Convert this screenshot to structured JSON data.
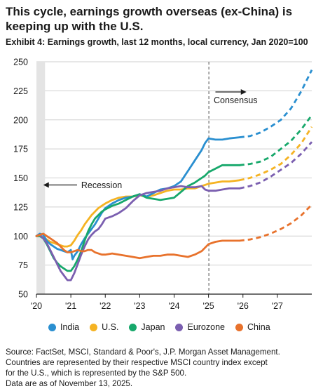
{
  "header": {
    "title": "This cycle, earnings growth overseas (ex-China) is keeping up with the U.S.",
    "subtitle": "Exhibit 4: Earnings growth, last 12 months, local currency, Jan 2020=100"
  },
  "source": {
    "lines": [
      "Source: FactSet, MSCI, Standard & Poor's, J.P. Morgan Asset Management.",
      "Countries are represented by their respective MSCI country index except",
      "for the U.S., which is represented by the S&P 500.",
      "Data are as of November 13, 2025."
    ]
  },
  "chart_data": {
    "type": "line",
    "title": "This cycle, earnings growth overseas (ex-China) is keeping up with the U.S.",
    "subtitle": "Exhibit 4: Earnings growth, last 12 months, local currency, Jan 2020=100",
    "xlabel": "",
    "ylabel": "",
    "xlim": [
      2020.0,
      2028.0
    ],
    "ylim": [
      50,
      250
    ],
    "xticks": [
      2020,
      2021,
      2022,
      2023,
      2024,
      2025,
      2026,
      2027
    ],
    "xtick_labels": [
      "'20",
      "'21",
      "'22",
      "'23",
      "'24",
      "'25",
      "'26",
      "'27"
    ],
    "yticks": [
      50,
      75,
      100,
      125,
      150,
      175,
      200,
      225,
      250
    ],
    "grid": "horizontal",
    "legend_position": "bottom",
    "recession": {
      "start": 2020.0,
      "end": 2020.25,
      "label": "Recession"
    },
    "forecast_start": 2025.0,
    "forecast_label": "Consensus",
    "series": [
      {
        "name": "India",
        "color": "#2a8fd0",
        "actual": [
          [
            2020.0,
            100
          ],
          [
            2020.1,
            102
          ],
          [
            2020.2,
            101
          ],
          [
            2020.3,
            96
          ],
          [
            2020.4,
            93
          ],
          [
            2020.5,
            91
          ],
          [
            2020.6,
            89
          ],
          [
            2020.7,
            88
          ],
          [
            2020.8,
            87
          ],
          [
            2020.9,
            86
          ],
          [
            2021.0,
            88
          ],
          [
            2021.05,
            80
          ],
          [
            2021.1,
            83
          ],
          [
            2021.2,
            87
          ],
          [
            2021.3,
            93
          ],
          [
            2021.4,
            98
          ],
          [
            2021.5,
            102
          ],
          [
            2021.6,
            106
          ],
          [
            2021.7,
            110
          ],
          [
            2021.8,
            115
          ],
          [
            2021.9,
            120
          ],
          [
            2022.0,
            124
          ],
          [
            2022.2,
            128
          ],
          [
            2022.4,
            131
          ],
          [
            2022.6,
            133
          ],
          [
            2022.8,
            134
          ],
          [
            2023.0,
            136
          ],
          [
            2023.2,
            134
          ],
          [
            2023.4,
            137
          ],
          [
            2023.6,
            140
          ],
          [
            2023.8,
            141
          ],
          [
            2024.0,
            143
          ],
          [
            2024.2,
            147
          ],
          [
            2024.4,
            156
          ],
          [
            2024.6,
            165
          ],
          [
            2024.8,
            174
          ],
          [
            2024.9,
            180
          ],
          [
            2025.0,
            184
          ],
          [
            2025.2,
            183
          ],
          [
            2025.4,
            183
          ],
          [
            2025.6,
            184
          ],
          [
            2025.9,
            185
          ]
        ],
        "forecast": [
          [
            2025.9,
            185
          ],
          [
            2026.2,
            186
          ],
          [
            2026.5,
            189
          ],
          [
            2026.8,
            194
          ],
          [
            2027.1,
            200
          ],
          [
            2027.4,
            210
          ],
          [
            2027.7,
            225
          ],
          [
            2028.0,
            243
          ]
        ]
      },
      {
        "name": "U.S.",
        "color": "#f5b323",
        "actual": [
          [
            2020.0,
            100
          ],
          [
            2020.1,
            100
          ],
          [
            2020.2,
            99
          ],
          [
            2020.3,
            97
          ],
          [
            2020.4,
            95
          ],
          [
            2020.5,
            94
          ],
          [
            2020.6,
            93
          ],
          [
            2020.7,
            92
          ],
          [
            2020.8,
            91
          ],
          [
            2020.9,
            91
          ],
          [
            2021.0,
            92
          ],
          [
            2021.1,
            96
          ],
          [
            2021.2,
            101
          ],
          [
            2021.3,
            105
          ],
          [
            2021.4,
            110
          ],
          [
            2021.5,
            114
          ],
          [
            2021.6,
            118
          ],
          [
            2021.7,
            121
          ],
          [
            2021.8,
            124
          ],
          [
            2021.9,
            126
          ],
          [
            2022.0,
            128
          ],
          [
            2022.2,
            131
          ],
          [
            2022.4,
            133
          ],
          [
            2022.6,
            134
          ],
          [
            2022.8,
            134
          ],
          [
            2023.0,
            135
          ],
          [
            2023.2,
            134
          ],
          [
            2023.4,
            135
          ],
          [
            2023.6,
            137
          ],
          [
            2023.8,
            139
          ],
          [
            2024.0,
            140
          ],
          [
            2024.2,
            140
          ],
          [
            2024.4,
            141
          ],
          [
            2024.6,
            141
          ],
          [
            2024.8,
            143
          ],
          [
            2024.9,
            144
          ],
          [
            2025.0,
            145
          ],
          [
            2025.2,
            146
          ],
          [
            2025.4,
            147
          ],
          [
            2025.6,
            147
          ],
          [
            2025.9,
            148
          ]
        ],
        "forecast": [
          [
            2025.9,
            148
          ],
          [
            2026.2,
            150
          ],
          [
            2026.5,
            153
          ],
          [
            2026.8,
            157
          ],
          [
            2027.1,
            162
          ],
          [
            2027.4,
            170
          ],
          [
            2027.7,
            180
          ],
          [
            2028.0,
            194
          ]
        ]
      },
      {
        "name": "Japan",
        "color": "#17a86b",
        "actual": [
          [
            2020.0,
            100
          ],
          [
            2020.1,
            100
          ],
          [
            2020.2,
            98
          ],
          [
            2020.3,
            93
          ],
          [
            2020.4,
            87
          ],
          [
            2020.5,
            81
          ],
          [
            2020.6,
            77
          ],
          [
            2020.7,
            74
          ],
          [
            2020.8,
            72
          ],
          [
            2020.9,
            70
          ],
          [
            2021.0,
            70
          ],
          [
            2021.1,
            74
          ],
          [
            2021.2,
            80
          ],
          [
            2021.3,
            87
          ],
          [
            2021.4,
            96
          ],
          [
            2021.5,
            104
          ],
          [
            2021.6,
            110
          ],
          [
            2021.7,
            115
          ],
          [
            2021.8,
            118
          ],
          [
            2021.9,
            121
          ],
          [
            2022.0,
            123
          ],
          [
            2022.2,
            126
          ],
          [
            2022.4,
            128
          ],
          [
            2022.6,
            131
          ],
          [
            2022.8,
            134
          ],
          [
            2023.0,
            136
          ],
          [
            2023.2,
            133
          ],
          [
            2023.4,
            132
          ],
          [
            2023.6,
            131
          ],
          [
            2023.8,
            132
          ],
          [
            2024.0,
            133
          ],
          [
            2024.2,
            138
          ],
          [
            2024.4,
            143
          ],
          [
            2024.6,
            146
          ],
          [
            2024.8,
            150
          ],
          [
            2024.9,
            152
          ],
          [
            2025.0,
            155
          ],
          [
            2025.2,
            158
          ],
          [
            2025.4,
            161
          ],
          [
            2025.6,
            161
          ],
          [
            2025.9,
            161
          ]
        ],
        "forecast": [
          [
            2025.9,
            161
          ],
          [
            2026.2,
            162
          ],
          [
            2026.5,
            164
          ],
          [
            2026.8,
            168
          ],
          [
            2027.1,
            175
          ],
          [
            2027.4,
            182
          ],
          [
            2027.7,
            192
          ],
          [
            2028.0,
            204
          ]
        ]
      },
      {
        "name": "Eurozone",
        "color": "#7b5fb0",
        "actual": [
          [
            2020.0,
            100
          ],
          [
            2020.1,
            101
          ],
          [
            2020.2,
            98
          ],
          [
            2020.3,
            94
          ],
          [
            2020.4,
            88
          ],
          [
            2020.5,
            82
          ],
          [
            2020.6,
            76
          ],
          [
            2020.7,
            70
          ],
          [
            2020.8,
            66
          ],
          [
            2020.9,
            62
          ],
          [
            2021.0,
            62
          ],
          [
            2021.1,
            68
          ],
          [
            2021.2,
            76
          ],
          [
            2021.3,
            84
          ],
          [
            2021.4,
            91
          ],
          [
            2021.5,
            97
          ],
          [
            2021.6,
            101
          ],
          [
            2021.7,
            104
          ],
          [
            2021.8,
            106
          ],
          [
            2021.9,
            110
          ],
          [
            2022.0,
            115
          ],
          [
            2022.2,
            117
          ],
          [
            2022.4,
            120
          ],
          [
            2022.6,
            124
          ],
          [
            2022.8,
            130
          ],
          [
            2023.0,
            135
          ],
          [
            2023.2,
            137
          ],
          [
            2023.4,
            138
          ],
          [
            2023.6,
            139
          ],
          [
            2023.8,
            141
          ],
          [
            2024.0,
            142
          ],
          [
            2024.2,
            143
          ],
          [
            2024.4,
            142
          ],
          [
            2024.6,
            142
          ],
          [
            2024.8,
            143
          ],
          [
            2024.9,
            140
          ],
          [
            2025.0,
            139
          ],
          [
            2025.2,
            139
          ],
          [
            2025.4,
            140
          ],
          [
            2025.6,
            141
          ],
          [
            2025.9,
            141
          ]
        ],
        "forecast": [
          [
            2025.9,
            141
          ],
          [
            2026.2,
            143
          ],
          [
            2026.5,
            146
          ],
          [
            2026.8,
            151
          ],
          [
            2027.1,
            157
          ],
          [
            2027.4,
            163
          ],
          [
            2027.7,
            171
          ],
          [
            2028.0,
            181
          ]
        ]
      },
      {
        "name": "China",
        "color": "#e8722c",
        "actual": [
          [
            2020.0,
            100
          ],
          [
            2020.1,
            101
          ],
          [
            2020.2,
            102
          ],
          [
            2020.3,
            100
          ],
          [
            2020.4,
            98
          ],
          [
            2020.5,
            96
          ],
          [
            2020.6,
            94
          ],
          [
            2020.7,
            91
          ],
          [
            2020.8,
            88
          ],
          [
            2020.9,
            86
          ],
          [
            2021.0,
            86
          ],
          [
            2021.1,
            87
          ],
          [
            2021.2,
            88
          ],
          [
            2021.3,
            87
          ],
          [
            2021.4,
            87
          ],
          [
            2021.5,
            88
          ],
          [
            2021.6,
            88
          ],
          [
            2021.7,
            86
          ],
          [
            2021.8,
            85
          ],
          [
            2021.9,
            84
          ],
          [
            2022.0,
            84
          ],
          [
            2022.2,
            85
          ],
          [
            2022.4,
            84
          ],
          [
            2022.6,
            83
          ],
          [
            2022.8,
            82
          ],
          [
            2023.0,
            81
          ],
          [
            2023.2,
            82
          ],
          [
            2023.4,
            83
          ],
          [
            2023.6,
            83
          ],
          [
            2023.8,
            84
          ],
          [
            2024.0,
            84
          ],
          [
            2024.2,
            83
          ],
          [
            2024.4,
            82
          ],
          [
            2024.6,
            84
          ],
          [
            2024.8,
            87
          ],
          [
            2024.9,
            90
          ],
          [
            2025.0,
            93
          ],
          [
            2025.2,
            95
          ],
          [
            2025.4,
            96
          ],
          [
            2025.6,
            96
          ],
          [
            2025.9,
            96
          ]
        ],
        "forecast": [
          [
            2025.9,
            96
          ],
          [
            2026.2,
            97
          ],
          [
            2026.5,
            99
          ],
          [
            2026.8,
            102
          ],
          [
            2027.1,
            106
          ],
          [
            2027.4,
            111
          ],
          [
            2027.7,
            118
          ],
          [
            2028.0,
            127
          ]
        ]
      }
    ]
  }
}
